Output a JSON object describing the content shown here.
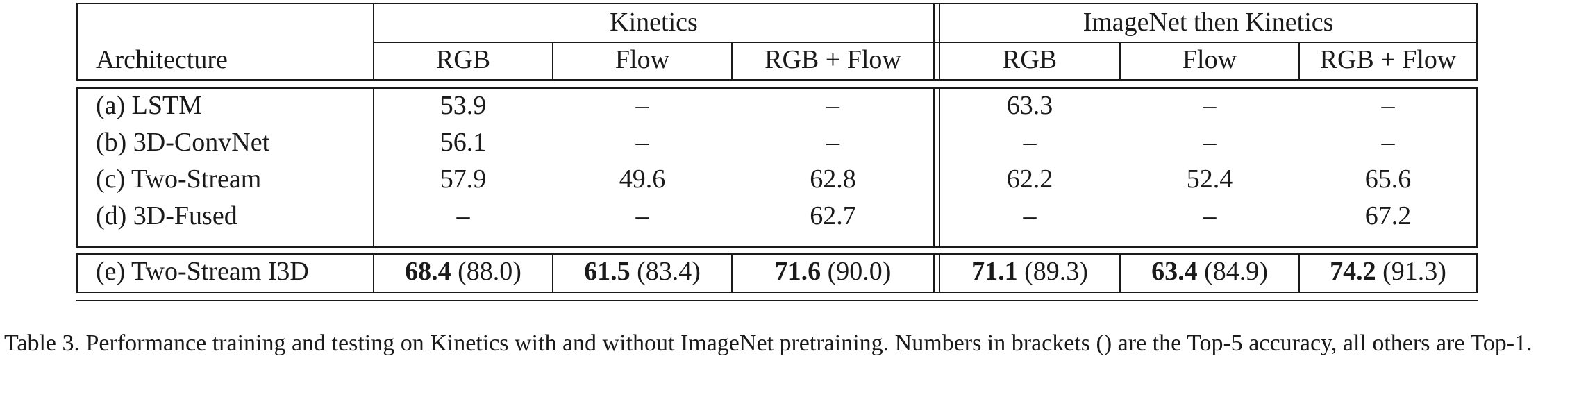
{
  "table": {
    "header": {
      "architecture": "Architecture",
      "group1": "Kinetics",
      "group2": "ImageNet then Kinetics",
      "sub": [
        "RGB",
        "Flow",
        "RGB + Flow",
        "RGB",
        "Flow",
        "RGB + Flow"
      ]
    },
    "rows": [
      {
        "name": "(a) LSTM",
        "cells": [
          {
            "bold": "",
            "plain": "53.9"
          },
          {
            "bold": "",
            "plain": "–"
          },
          {
            "bold": "",
            "plain": "–"
          },
          {
            "bold": "",
            "plain": "63.3"
          },
          {
            "bold": "",
            "plain": "–"
          },
          {
            "bold": "",
            "plain": "–"
          }
        ]
      },
      {
        "name": "(b) 3D-ConvNet",
        "cells": [
          {
            "bold": "",
            "plain": "56.1"
          },
          {
            "bold": "",
            "plain": "–"
          },
          {
            "bold": "",
            "plain": "–"
          },
          {
            "bold": "",
            "plain": "–"
          },
          {
            "bold": "",
            "plain": "–"
          },
          {
            "bold": "",
            "plain": "–"
          }
        ]
      },
      {
        "name": "(c) Two-Stream",
        "cells": [
          {
            "bold": "",
            "plain": "57.9"
          },
          {
            "bold": "",
            "plain": "49.6"
          },
          {
            "bold": "",
            "plain": "62.8"
          },
          {
            "bold": "",
            "plain": "62.2"
          },
          {
            "bold": "",
            "plain": "52.4"
          },
          {
            "bold": "",
            "plain": "65.6"
          }
        ]
      },
      {
        "name": "(d) 3D-Fused",
        "cells": [
          {
            "bold": "",
            "plain": "–"
          },
          {
            "bold": "",
            "plain": "–"
          },
          {
            "bold": "",
            "plain": "62.7"
          },
          {
            "bold": "",
            "plain": "–"
          },
          {
            "bold": "",
            "plain": "–"
          },
          {
            "bold": "",
            "plain": "67.2"
          }
        ]
      },
      {
        "name": "(e) Two-Stream I3D",
        "cells": [
          {
            "bold": "68.4",
            "plain": " (88.0)"
          },
          {
            "bold": "61.5",
            "plain": " (83.4)"
          },
          {
            "bold": "71.6",
            "plain": " (90.0)"
          },
          {
            "bold": "71.1",
            "plain": " (89.3)"
          },
          {
            "bold": "63.4",
            "plain": " (84.9)"
          },
          {
            "bold": "74.2",
            "plain": " (91.3)"
          }
        ]
      }
    ]
  },
  "caption": "Table 3. Performance training and testing on Kinetics with and without ImageNet pretraining.  Numbers in brackets () are the Top-5 accuracy, all others are Top-1."
}
